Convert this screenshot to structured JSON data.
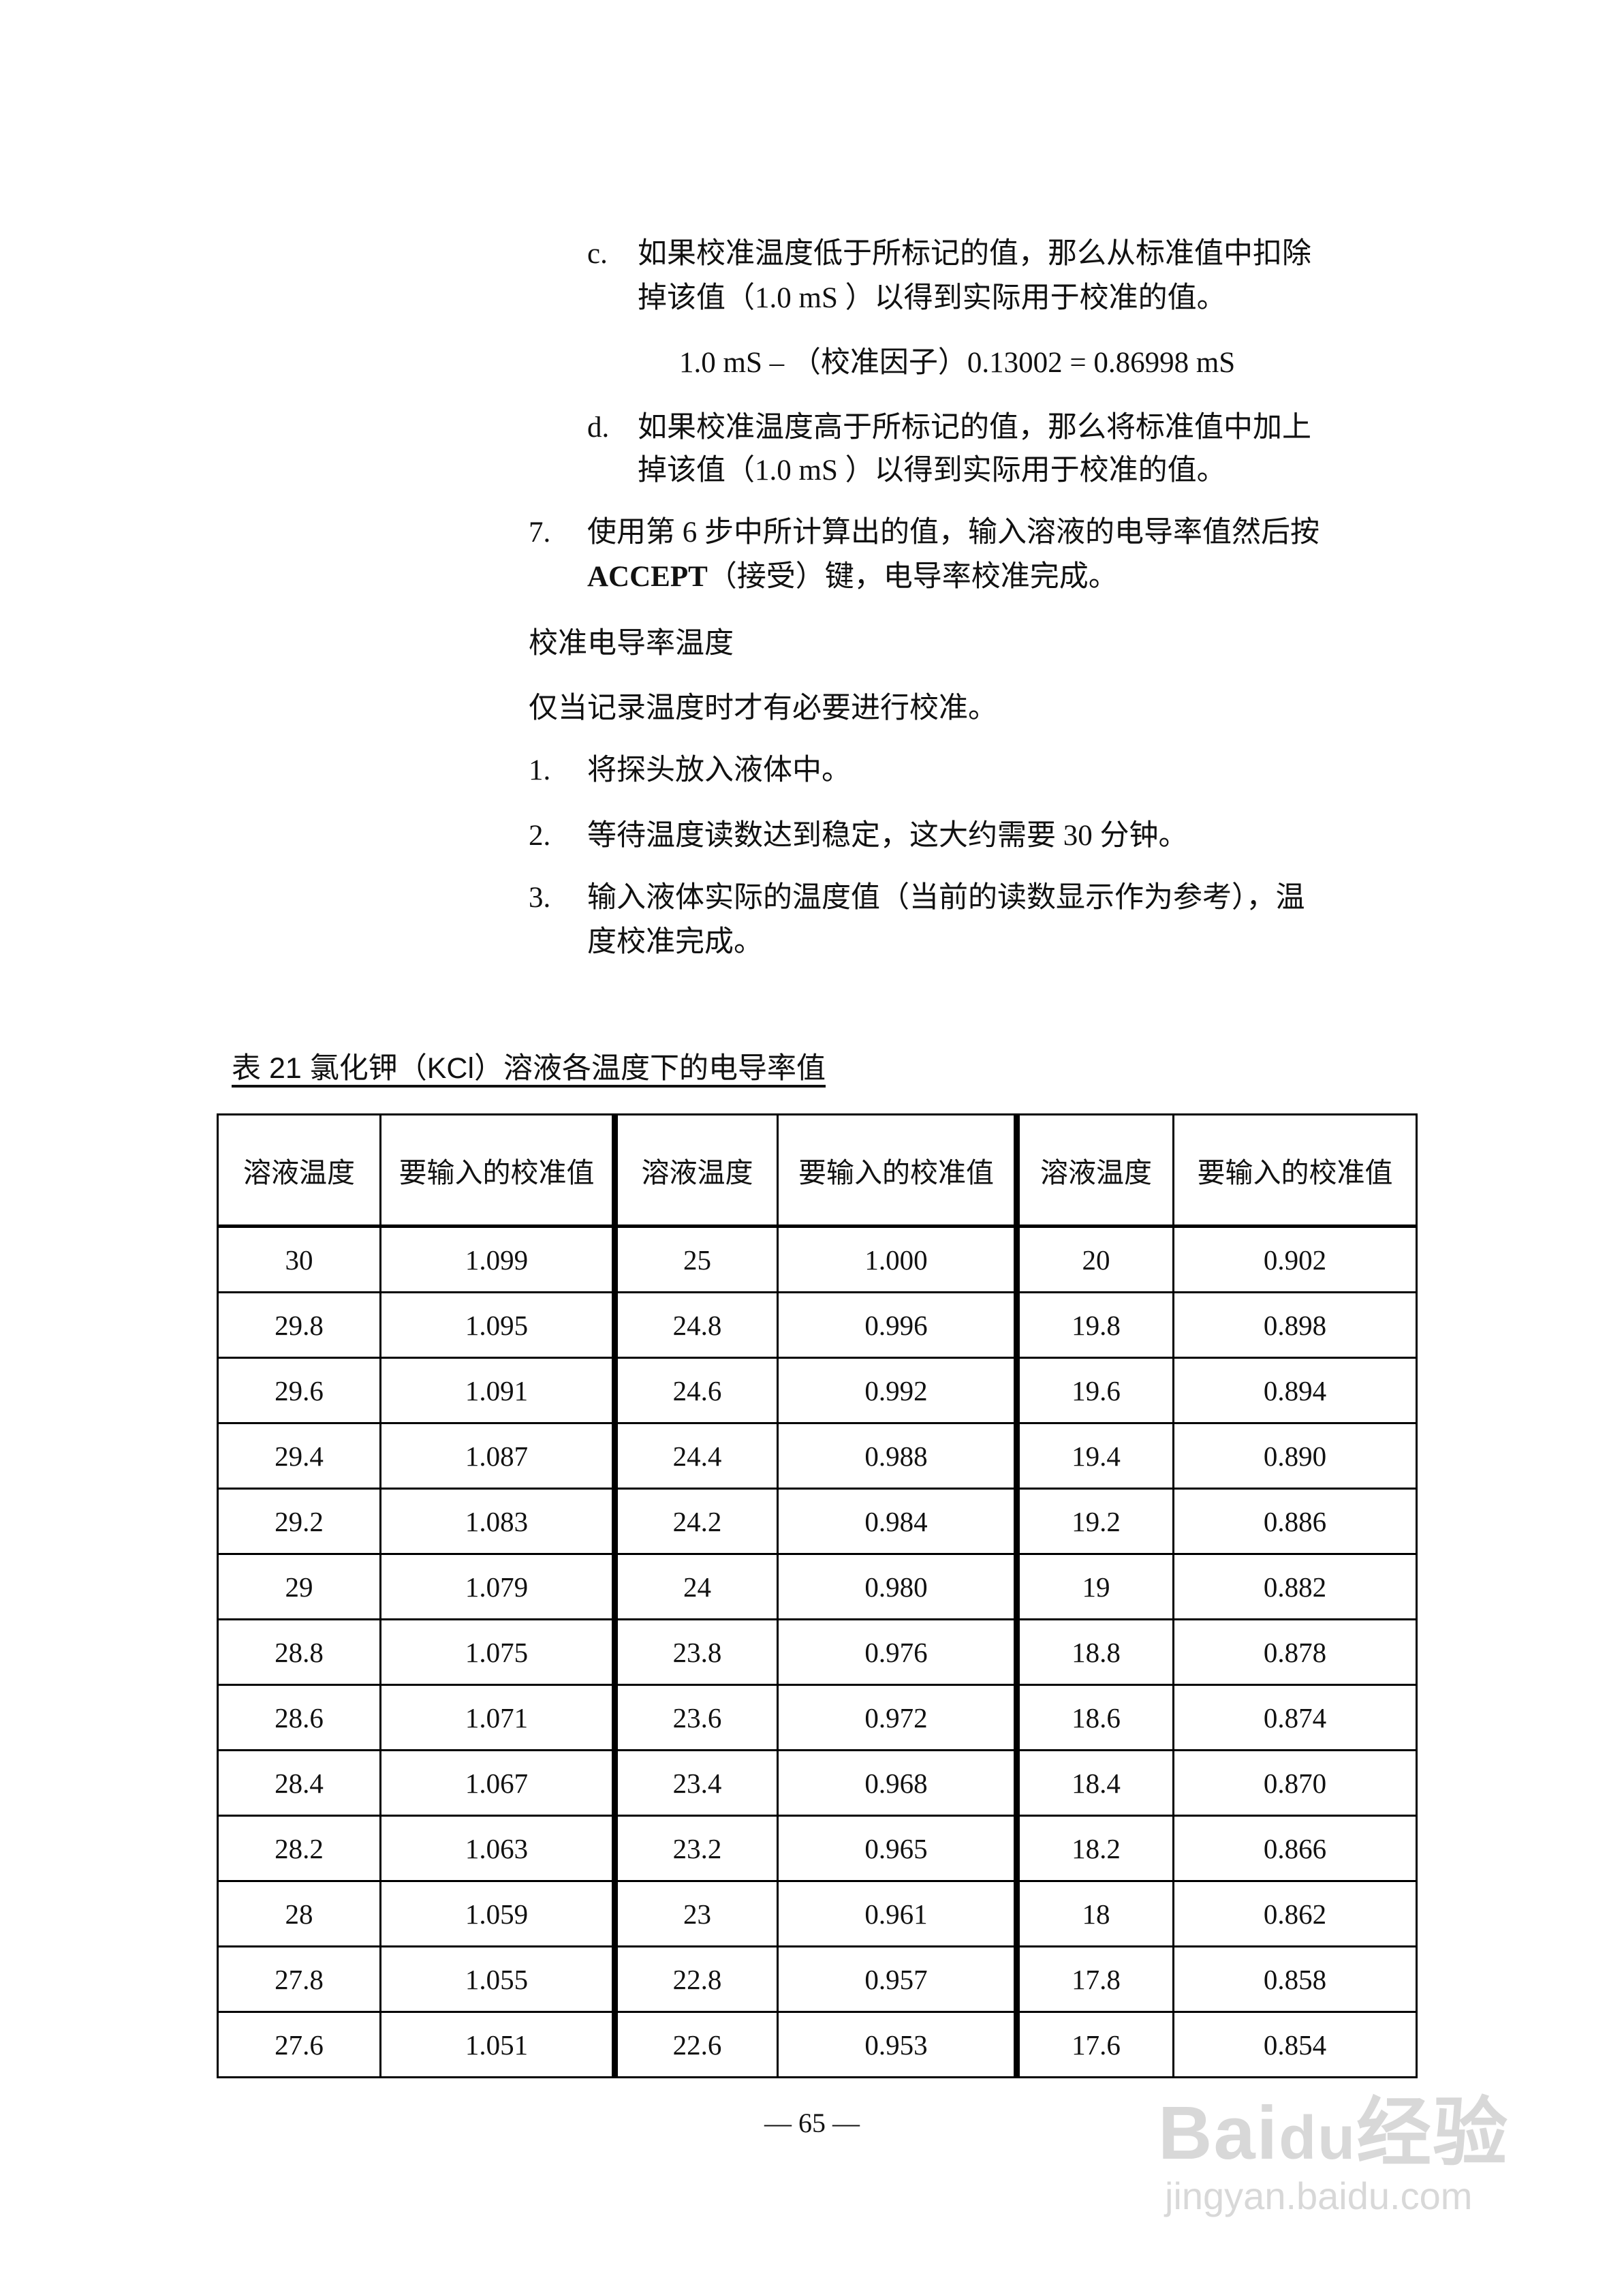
{
  "steps": {
    "c": {
      "marker": "c.",
      "line1": "如果校准温度低于所标记的值，那么从标准值中扣除",
      "line2": "掉该值（1.0 mS ）以得到实际用于校准的值。"
    },
    "formula": "1.0 mS –  （校准因子）0.13002 = 0.86998 mS",
    "d": {
      "marker": "d.",
      "line1": "如果校准温度高于所标记的值，那么将标准值中加上",
      "line2": "掉该值（1.0 mS ）以得到实际用于校准的值。"
    },
    "seven": {
      "marker": "7.",
      "line1": "使用第 6 步中所计算出的值，输入溶液的电导率值然后按",
      "bold": "ACCEPT",
      "line2_rest": "（接受）键，电导率校准完成。"
    }
  },
  "section_title": "校准电导率温度",
  "section_intro": "仅当记录温度时才有必要进行校准。",
  "temp_steps": [
    {
      "marker": "1.",
      "line1": "将探头放入液体中。"
    },
    {
      "marker": "2.",
      "line1": "等待温度读数达到稳定，这大约需要 30 分钟。"
    },
    {
      "marker": "3.",
      "line1": "输入液体实际的温度值（当前的读数显示作为参考），温",
      "line2": "度校准完成。"
    }
  ],
  "table": {
    "caption": "表 21   氯化钾（KCl）溶液各温度下的电导率值",
    "headers": [
      "溶液温度",
      "要输入的校准值",
      "溶液温度",
      "要输入的校准值",
      "溶液温度",
      "要输入的校准值"
    ],
    "rows": [
      [
        "30",
        "1.099",
        "25",
        "1.000",
        "20",
        "0.902"
      ],
      [
        "29.8",
        "1.095",
        "24.8",
        "0.996",
        "19.8",
        "0.898"
      ],
      [
        "29.6",
        "1.091",
        "24.6",
        "0.992",
        "19.6",
        "0.894"
      ],
      [
        "29.4",
        "1.087",
        "24.4",
        "0.988",
        "19.4",
        "0.890"
      ],
      [
        "29.2",
        "1.083",
        "24.2",
        "0.984",
        "19.2",
        "0.886"
      ],
      [
        "29",
        "1.079",
        "24",
        "0.980",
        "19",
        "0.882"
      ],
      [
        "28.8",
        "1.075",
        "23.8",
        "0.976",
        "18.8",
        "0.878"
      ],
      [
        "28.6",
        "1.071",
        "23.6",
        "0.972",
        "18.6",
        "0.874"
      ],
      [
        "28.4",
        "1.067",
        "23.4",
        "0.968",
        "18.4",
        "0.870"
      ],
      [
        "28.2",
        "1.063",
        "23.2",
        "0.965",
        "18.2",
        "0.866"
      ],
      [
        "28",
        "1.059",
        "23",
        "0.961",
        "18",
        "0.862"
      ],
      [
        "27.8",
        "1.055",
        "22.8",
        "0.957",
        "17.8",
        "0.858"
      ],
      [
        "27.6",
        "1.051",
        "22.6",
        "0.953",
        "17.6",
        "0.854"
      ]
    ]
  },
  "page_number": "— 65 —",
  "watermark": {
    "logo": "Baidu经验",
    "url": "jingyan.baidu.com"
  }
}
